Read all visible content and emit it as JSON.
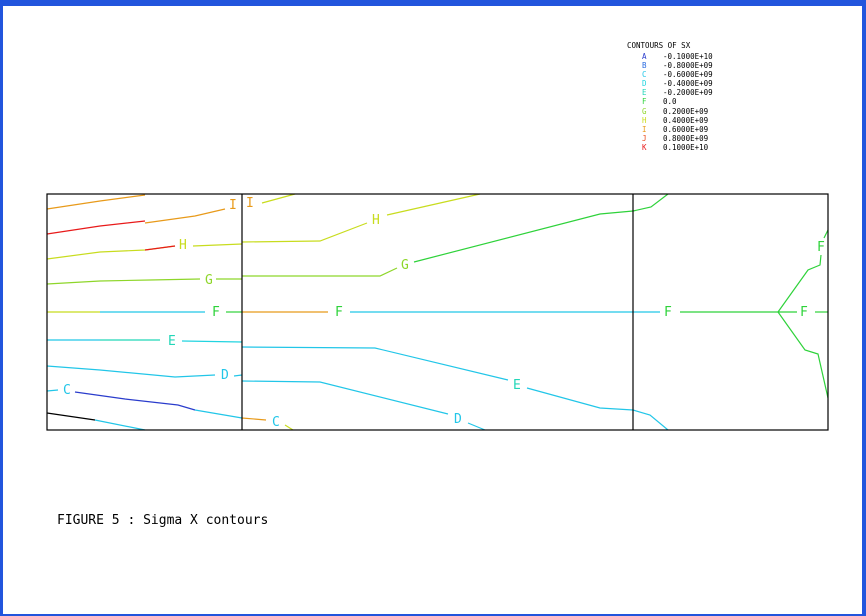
{
  "legend": {
    "title": "CONTOURS OF SX",
    "entries": [
      {
        "key": "A",
        "value": "-0.1000E+10",
        "color": "#2a3ccc"
      },
      {
        "key": "B",
        "value": "-0.8000E+09",
        "color": "#2a6be0"
      },
      {
        "key": "C",
        "value": "-0.6000E+09",
        "color": "#22c6e8"
      },
      {
        "key": "D",
        "value": "-0.4000E+09",
        "color": "#22d4e0"
      },
      {
        "key": "E",
        "value": "-0.2000E+09",
        "color": "#22d6b8"
      },
      {
        "key": "F",
        "value": "0.0",
        "color": "#2ed23a"
      },
      {
        "key": "G",
        "value": "0.2000E+09",
        "color": "#8ed62a"
      },
      {
        "key": "H",
        "value": "0.4000E+09",
        "color": "#c8dc1e"
      },
      {
        "key": "I",
        "value": "0.6000E+09",
        "color": "#e89a1a"
      },
      {
        "key": "J",
        "value": "0.8000E+09",
        "color": "#e84a1a"
      },
      {
        "key": "K",
        "value": "0.1000E+10",
        "color": "#e81a1a"
      }
    ]
  },
  "caption": "FIGURE 5 : Sigma X contours",
  "labels": {
    "I_left": "I",
    "I_mid": "I",
    "H_left": "H",
    "H_mid": "H",
    "G_left": "G",
    "G_mid": "G",
    "F_left": "F",
    "F_mid": "F",
    "F_right1": "F",
    "F_right2": "F",
    "F_right3": "F",
    "E_left": "E",
    "E_mid": "E",
    "D_left": "D",
    "D_mid": "D",
    "C_left": "C",
    "C_mid": "C"
  }
}
